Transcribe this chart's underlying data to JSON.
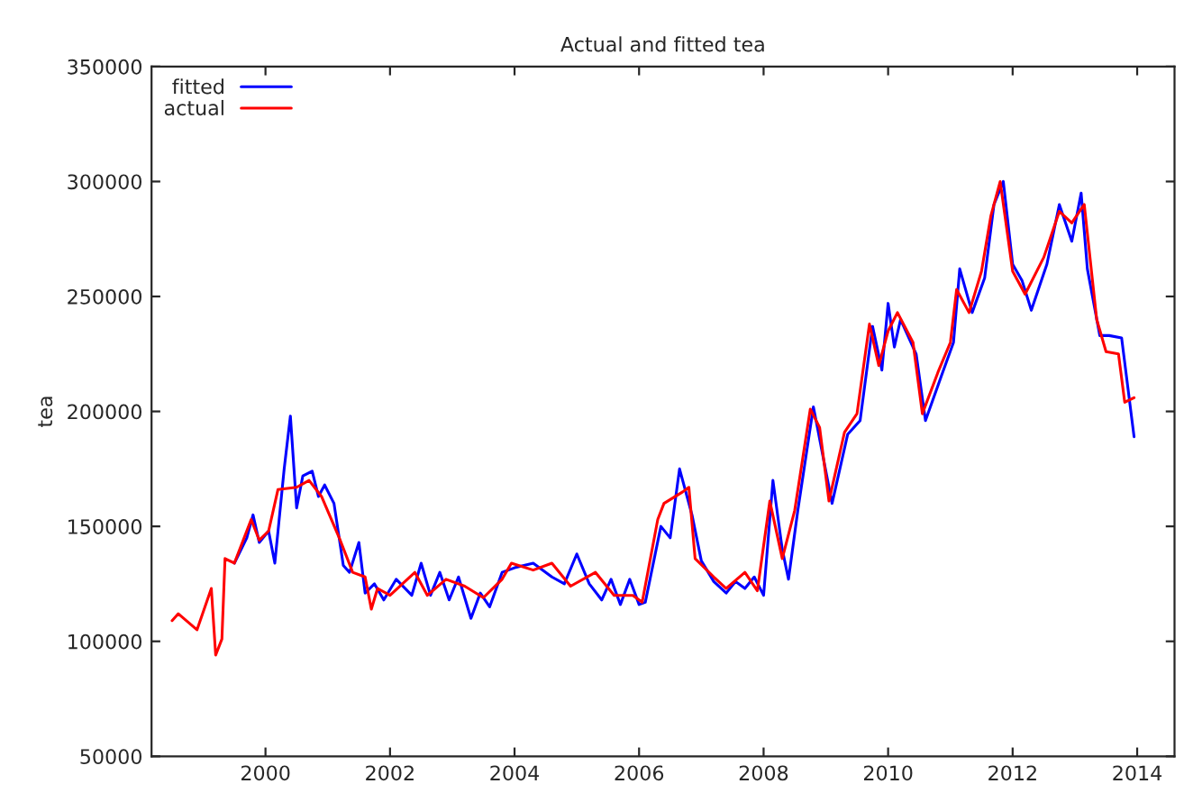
{
  "chart_data": {
    "type": "line",
    "title": "Actual and fitted tea",
    "ylabel": "tea",
    "xlim": [
      1998.17,
      2014.6
    ],
    "ylim": [
      50000,
      350000
    ],
    "xticks": [
      2000,
      2002,
      2004,
      2006,
      2008,
      2010,
      2012,
      2014
    ],
    "yticks": [
      50000,
      100000,
      150000,
      200000,
      250000,
      300000,
      350000
    ],
    "grid": false,
    "legend": "top left",
    "line_style": "solid",
    "marker": "none",
    "series": [
      {
        "name": "fitted",
        "color": "#0000ff",
        "x": [
          1999.5,
          1999.7,
          1999.8,
          1999.9,
          2000.05,
          2000.15,
          2000.3,
          2000.4,
          2000.5,
          2000.6,
          2000.75,
          2000.85,
          2000.95,
          2001.1,
          2001.25,
          2001.35,
          2001.5,
          2001.6,
          2001.75,
          2001.9,
          2002.1,
          2002.35,
          2002.5,
          2002.65,
          2002.8,
          2002.95,
          2003.1,
          2003.3,
          2003.45,
          2003.6,
          2003.8,
          2004.0,
          2004.3,
          2004.6,
          2004.8,
          2005.0,
          2005.2,
          2005.4,
          2005.55,
          2005.7,
          2005.85,
          2006.0,
          2006.1,
          2006.35,
          2006.5,
          2006.65,
          2006.85,
          2007.0,
          2007.2,
          2007.4,
          2007.55,
          2007.7,
          2007.85,
          2008.0,
          2008.15,
          2008.3,
          2008.4,
          2008.55,
          2008.8,
          2009.1,
          2009.35,
          2009.55,
          2009.75,
          2009.9,
          2010.0,
          2010.1,
          2010.2,
          2010.45,
          2010.6,
          2010.85,
          2011.05,
          2011.15,
          2011.35,
          2011.55,
          2011.7,
          2011.85,
          2012.0,
          2012.15,
          2012.3,
          2012.55,
          2012.75,
          2012.95,
          2013.1,
          2013.2,
          2013.4,
          2013.55,
          2013.75,
          2013.95
        ],
        "values": [
          134000,
          145000,
          155000,
          143000,
          148000,
          134000,
          175000,
          198000,
          158000,
          172000,
          174000,
          163000,
          168000,
          160000,
          133000,
          130000,
          143000,
          121000,
          125000,
          118000,
          127000,
          120000,
          134000,
          120000,
          130000,
          118000,
          128000,
          110000,
          121000,
          115000,
          130000,
          132000,
          134000,
          128000,
          125000,
          138000,
          125000,
          118000,
          127000,
          116000,
          127000,
          116000,
          117000,
          150000,
          145000,
          175000,
          155000,
          135000,
          126000,
          121000,
          126000,
          123000,
          128000,
          120000,
          170000,
          140000,
          127000,
          157000,
          202000,
          160000,
          190000,
          196000,
          237000,
          218000,
          247000,
          228000,
          240000,
          225000,
          196000,
          215000,
          230000,
          262000,
          243000,
          258000,
          290000,
          300000,
          264000,
          257000,
          244000,
          264000,
          290000,
          274000,
          295000,
          262000,
          233000,
          233000,
          232000,
          189000
        ]
      },
      {
        "name": "actual",
        "color": "#ff0000",
        "x": [
          1998.5,
          1998.6,
          1998.9,
          1999.13,
          1999.2,
          1999.3,
          1999.35,
          1999.5,
          1999.77,
          1999.9,
          2000.05,
          2000.2,
          2000.5,
          2000.7,
          2000.9,
          2001.2,
          2001.4,
          2001.6,
          2001.7,
          2001.8,
          2002.0,
          2002.4,
          2002.6,
          2002.9,
          2003.2,
          2003.5,
          2003.8,
          2003.95,
          2004.3,
          2004.6,
          2004.9,
          2005.3,
          2005.6,
          2005.9,
          2006.05,
          2006.3,
          2006.4,
          2006.7,
          2006.8,
          2006.9,
          2007.2,
          2007.4,
          2007.7,
          2007.9,
          2008.1,
          2008.3,
          2008.5,
          2008.75,
          2008.9,
          2009.05,
          2009.3,
          2009.5,
          2009.7,
          2009.85,
          2010.0,
          2010.15,
          2010.4,
          2010.55,
          2010.8,
          2011.0,
          2011.1,
          2011.3,
          2011.5,
          2011.65,
          2011.8,
          2012.0,
          2012.2,
          2012.5,
          2012.75,
          2012.95,
          2013.15,
          2013.35,
          2013.5,
          2013.7,
          2013.8,
          2013.95
        ],
        "values": [
          109000,
          112000,
          105000,
          123000,
          94000,
          101000,
          136000,
          134000,
          153000,
          144000,
          148000,
          166000,
          167000,
          170000,
          163000,
          144000,
          130000,
          128000,
          114000,
          123000,
          120000,
          130000,
          120000,
          127000,
          124000,
          119000,
          127000,
          134000,
          131000,
          134000,
          124000,
          130000,
          120000,
          120000,
          117000,
          153000,
          160000,
          165000,
          167000,
          136000,
          128000,
          123000,
          130000,
          122000,
          161000,
          136000,
          157000,
          201000,
          193000,
          161000,
          191000,
          199000,
          238000,
          220000,
          235000,
          243000,
          230000,
          199000,
          217000,
          230000,
          253000,
          243000,
          261000,
          285000,
          300000,
          261000,
          251000,
          267000,
          287000,
          282000,
          290000,
          240000,
          226000,
          225000,
          204000,
          206000
        ]
      }
    ]
  }
}
